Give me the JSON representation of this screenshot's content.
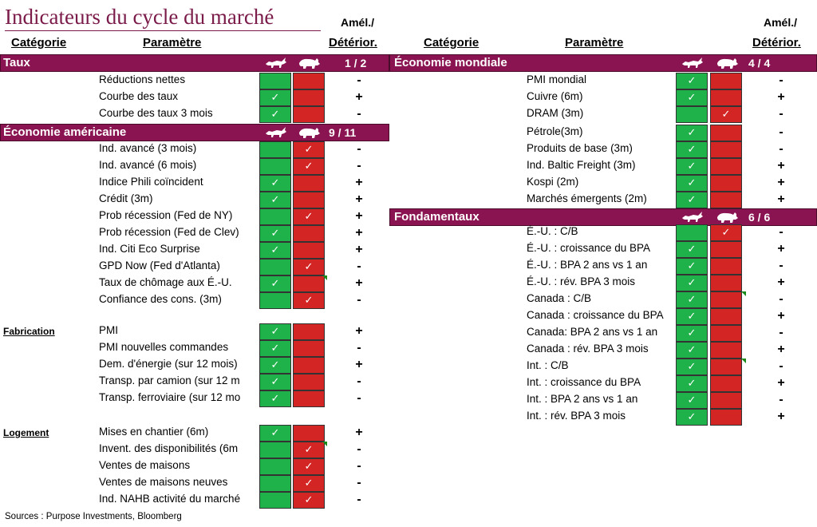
{
  "title": "Indicateurs du cycle du marché",
  "headers": {
    "categorie": "Catégorie",
    "parametre": "Paramètre",
    "amel": "Amél./",
    "deterior": "Détérior."
  },
  "icons": {
    "bull": "bull-icon",
    "bear": "bear-icon"
  },
  "colors": {
    "band": "#8a1451",
    "green": "#1fb24a",
    "red": "#d42525",
    "title": "#7b1b4a"
  },
  "sections": {
    "taux": {
      "label": "Taux",
      "score": "1 / 2"
    },
    "eco_us": {
      "label": "Économie américaine",
      "score": "9 / 11"
    },
    "eco_world": {
      "label": "Économie mondiale",
      "score": "4 / 4"
    },
    "fondamentaux": {
      "label": "Fondamentaux",
      "score": "6 / 6"
    }
  },
  "categories": {
    "fabrication": "Fabrication",
    "logement": "Logement"
  },
  "left_rows": [
    {
      "param": "Réductions nettes",
      "bull": false,
      "bear": false,
      "sign": "-"
    },
    {
      "param": "Courbe des taux",
      "bull": true,
      "bear": false,
      "sign": "+"
    },
    {
      "param": "Courbe des taux 3 mois",
      "bull": true,
      "bear": false,
      "sign": "-"
    },
    {
      "param": "Ind. avancé (3 mois)",
      "bull": false,
      "bear": true,
      "sign": "-"
    },
    {
      "param": "Ind. avancé (6 mois)",
      "bull": false,
      "bear": true,
      "sign": "-"
    },
    {
      "param": "Indice Phili coïncident",
      "bull": true,
      "bear": false,
      "sign": "+"
    },
    {
      "param": "Crédit (3m)",
      "bull": true,
      "bear": false,
      "sign": "+"
    },
    {
      "param": "Prob récession (Fed de NY)",
      "bull": false,
      "bear": true,
      "sign": "+"
    },
    {
      "param": "Prob récession (Fed de Clev)",
      "bull": true,
      "bear": false,
      "sign": "+"
    },
    {
      "param": "Ind. Citi Eco Surprise",
      "bull": true,
      "bear": false,
      "sign": "+"
    },
    {
      "param": "GPD Now (Fed d'Atlanta)",
      "bull": false,
      "bear": true,
      "sign": "-"
    },
    {
      "param": "Taux de chômage aux É.-U.",
      "bull": true,
      "bear": false,
      "sign": "+"
    },
    {
      "param": "Confiance des cons. (3m)",
      "bull": false,
      "bear": true,
      "sign": "-"
    },
    {
      "param": "PMI",
      "bull": true,
      "bear": false,
      "sign": "+"
    },
    {
      "param": "PMI nouvelles commandes",
      "bull": true,
      "bear": false,
      "sign": "-"
    },
    {
      "param": "Dem. d'énergie (sur 12 mois)",
      "bull": true,
      "bear": false,
      "sign": "+"
    },
    {
      "param": "Transp. par camion (sur 12 m",
      "bull": true,
      "bear": false,
      "sign": "-"
    },
    {
      "param": "Transp. ferroviaire (sur 12 mo",
      "bull": true,
      "bear": false,
      "sign": "-"
    },
    {
      "param": "Mises en chantier (6m)",
      "bull": true,
      "bear": false,
      "sign": "+"
    },
    {
      "param": "Invent. des disponibilités (6m",
      "bull": false,
      "bear": true,
      "sign": "-"
    },
    {
      "param": "Ventes de maisons",
      "bull": false,
      "bear": true,
      "sign": "-"
    },
    {
      "param": "Ventes de maisons neuves",
      "bull": false,
      "bear": true,
      "sign": "-"
    },
    {
      "param": "Ind. NAHB activité du marché",
      "bull": false,
      "bear": true,
      "sign": "-"
    }
  ],
  "right_rows": [
    {
      "param": "PMI mondial",
      "bull": true,
      "bear": false,
      "sign": "-"
    },
    {
      "param": "Cuivre (6m)",
      "bull": true,
      "bear": false,
      "sign": "+"
    },
    {
      "param": "DRAM (3m)",
      "bull": false,
      "bear": true,
      "sign": "-"
    },
    {
      "param": "Pétrole(3m)",
      "bull": true,
      "bear": false,
      "sign": "-"
    },
    {
      "param": "Produits de base (3m)",
      "bull": true,
      "bear": false,
      "sign": "-"
    },
    {
      "param": "Ind. Baltic Freight (3m)",
      "bull": true,
      "bear": false,
      "sign": "+"
    },
    {
      "param": "Kospi (2m)",
      "bull": true,
      "bear": false,
      "sign": "+"
    },
    {
      "param": "Marchés émergents (2m)",
      "bull": true,
      "bear": false,
      "sign": "+"
    },
    {
      "param": "É.-U. : C/B",
      "bull": false,
      "bear": true,
      "sign": "-"
    },
    {
      "param": "É.-U. : croissance du BPA",
      "bull": true,
      "bear": false,
      "sign": "+"
    },
    {
      "param": "É.-U. : BPA 2 ans vs 1 an",
      "bull": true,
      "bear": false,
      "sign": "-"
    },
    {
      "param": "É.-U. : rév. BPA 3 mois",
      "bull": true,
      "bear": false,
      "sign": "+"
    },
    {
      "param": "Canada : C/B",
      "bull": true,
      "bear": false,
      "sign": "-"
    },
    {
      "param": "Canada : croissance du BPA",
      "bull": true,
      "bear": false,
      "sign": "+"
    },
    {
      "param": "Canada: BPA 2 ans vs 1 an",
      "bull": true,
      "bear": false,
      "sign": "-"
    },
    {
      "param": "Canada : rév. BPA 3 mois",
      "bull": true,
      "bear": false,
      "sign": "+"
    },
    {
      "param": "Int. : C/B",
      "bull": true,
      "bear": false,
      "sign": "-"
    },
    {
      "param": "Int. : croissance du BPA",
      "bull": true,
      "bear": false,
      "sign": "+"
    },
    {
      "param": "Int. : BPA 2 ans vs 1 an",
      "bull": true,
      "bear": false,
      "sign": "-"
    },
    {
      "param": "Int. : rév. BPA 3 mois",
      "bull": true,
      "bear": false,
      "sign": "+"
    }
  ],
  "check": "✓",
  "source": "Sources : Purpose Investments, Bloomberg"
}
